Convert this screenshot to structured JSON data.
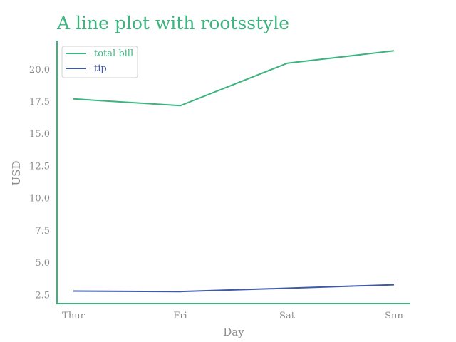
{
  "chart_data": {
    "type": "line",
    "title": "A line plot with rootsstyle",
    "xlabel": "Day",
    "ylabel": "USD",
    "categories": [
      "Thur",
      "Fri",
      "Sat",
      "Sun"
    ],
    "series": [
      {
        "name": "total bill",
        "values": [
          17.68,
          17.15,
          20.44,
          21.41
        ],
        "color": "#3bb47e"
      },
      {
        "name": "tip",
        "values": [
          2.77,
          2.73,
          2.99,
          3.26
        ],
        "color": "#4059a6"
      }
    ],
    "yticks": [
      {
        "value": 2.5,
        "label": "2.5"
      },
      {
        "value": 5.0,
        "label": "5.0"
      },
      {
        "value": 7.5,
        "label": "7.5"
      },
      {
        "value": 10.0,
        "label": "10.0"
      },
      {
        "value": 12.5,
        "label": "12.5"
      },
      {
        "value": 15.0,
        "label": "15.0"
      },
      {
        "value": 17.5,
        "label": "17.5"
      },
      {
        "value": 20.0,
        "label": "20.0"
      }
    ],
    "ylim": [
      1.8,
      22.2
    ],
    "grid": false,
    "legend_position": "top-left",
    "title_color": "#3bb47e",
    "axis_color": "#3bb47e"
  }
}
